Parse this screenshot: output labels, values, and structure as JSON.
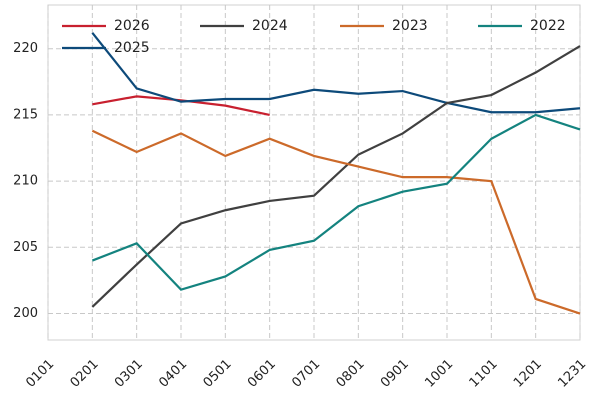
{
  "chart_data": {
    "type": "line",
    "categories": [
      "0101",
      "0201",
      "0301",
      "0401",
      "0501",
      "0601",
      "0701",
      "0801",
      "0901",
      "1001",
      "1101",
      "1201",
      "1231"
    ],
    "ylim": [
      198,
      223.3
    ],
    "yticks": [
      200,
      205,
      210,
      215,
      220
    ],
    "grid": true,
    "legend": "top",
    "series": [
      {
        "name": "2026",
        "color": "#c8202f",
        "values": [
          null,
          215.8,
          216.4,
          216.1,
          215.7,
          215.0,
          null,
          null,
          null,
          null,
          null,
          null,
          null
        ]
      },
      {
        "name": "2025",
        "color": "#0d4a7a",
        "values": [
          null,
          221.2,
          217.0,
          216.0,
          216.2,
          216.2,
          216.9,
          216.6,
          216.8,
          215.9,
          215.2,
          215.2,
          215.5
        ]
      },
      {
        "name": "2024",
        "color": "#404040",
        "values": [
          null,
          200.5,
          203.7,
          206.8,
          207.8,
          208.5,
          208.9,
          212.0,
          213.6,
          215.9,
          216.5,
          218.2,
          220.2
        ]
      },
      {
        "name": "2023",
        "color": "#cc6a2a",
        "values": [
          null,
          213.8,
          212.2,
          213.6,
          211.9,
          213.2,
          211.9,
          211.1,
          210.3,
          210.3,
          210.0,
          201.1,
          200.0
        ]
      },
      {
        "name": "2022",
        "color": "#14837f",
        "values": [
          null,
          204.0,
          205.3,
          201.8,
          202.8,
          204.8,
          205.5,
          208.1,
          209.2,
          209.8,
          213.2,
          215.0,
          213.9
        ]
      }
    ]
  }
}
